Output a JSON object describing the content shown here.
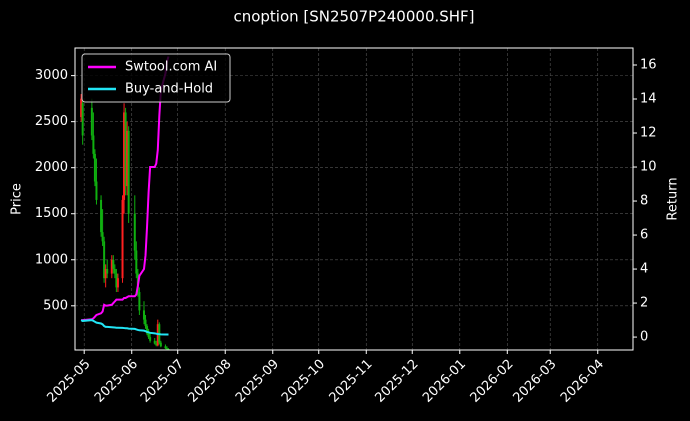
{
  "chart_data": {
    "type": "candlestick",
    "title": "cnoption [SN2507P240000.SHF]",
    "ylabel": "Price",
    "y2label": "Return",
    "x": [
      "2025-04-29",
      "2025-04-30",
      "2025-05-06",
      "2025-05-07",
      "2025-05-08",
      "2025-05-09",
      "2025-05-12",
      "2025-05-13",
      "2025-05-14",
      "2025-05-15",
      "2025-05-16",
      "2025-05-19",
      "2025-05-20",
      "2025-05-21",
      "2025-05-22",
      "2025-05-23",
      "2025-05-26",
      "2025-05-27",
      "2025-05-28",
      "2025-05-29",
      "2025-05-30",
      "2025-06-03",
      "2025-06-04",
      "2025-06-05",
      "2025-06-06",
      "2025-06-09",
      "2025-06-10",
      "2025-06-11",
      "2025-06-12",
      "2025-06-13",
      "2025-06-16",
      "2025-06-17",
      "2025-06-18",
      "2025-06-19",
      "2025-06-20",
      "2025-06-23",
      "2025-06-24",
      "2025-06-25"
    ],
    "open": [
      2550,
      2700,
      2650,
      2350,
      2150,
      1850,
      1650,
      1300,
      1200,
      800,
      900,
      850,
      1000,
      900,
      850,
      700,
      800,
      1650,
      2600,
      1800,
      2400,
      1500,
      1100,
      850,
      650,
      450,
      350,
      280,
      200,
      160,
      120,
      90,
      70,
      300,
      100,
      60,
      40,
      30
    ],
    "high": [
      2800,
      2750,
      2750,
      2600,
      2200,
      2100,
      1700,
      1550,
      1250,
      950,
      1000,
      1050,
      1050,
      950,
      900,
      850,
      1700,
      2700,
      2650,
      2500,
      2450,
      1700,
      1200,
      900,
      700,
      550,
      400,
      300,
      250,
      200,
      150,
      120,
      350,
      320,
      120,
      80,
      60,
      40
    ],
    "low": [
      2500,
      2250,
      2300,
      2100,
      1800,
      1600,
      1250,
      1150,
      750,
      700,
      800,
      800,
      850,
      800,
      650,
      650,
      750,
      1500,
      1700,
      1700,
      1400,
      1000,
      800,
      600,
      400,
      300,
      250,
      180,
      140,
      100,
      80,
      60,
      60,
      80,
      50,
      30,
      20,
      20
    ],
    "close": [
      2750,
      2350,
      2350,
      2150,
      1850,
      1650,
      1300,
      1200,
      800,
      900,
      850,
      1000,
      900,
      850,
      700,
      800,
      1650,
      2600,
      1800,
      2400,
      1500,
      1100,
      850,
      650,
      450,
      350,
      280,
      200,
      160,
      120,
      90,
      70,
      300,
      100,
      60,
      40,
      30,
      25
    ],
    "up_color": "#ff2020",
    "down_color": "#10b010",
    "series": [
      {
        "name": "Swtool.com AI",
        "color": "#ff00ff",
        "axis": "y2",
        "values": [
          1.0,
          1.0,
          1.05,
          1.1,
          1.2,
          1.3,
          1.4,
          1.5,
          1.9,
          1.85,
          1.85,
          1.9,
          2.0,
          2.1,
          2.2,
          2.2,
          2.2,
          2.3,
          2.3,
          2.35,
          2.4,
          2.4,
          2.5,
          3.0,
          3.6,
          4.0,
          4.8,
          6.5,
          8.5,
          10,
          10,
          10.2,
          11,
          13,
          14.5,
          15.5,
          16.2,
          16.5
        ]
      },
      {
        "name": "Buy-and-Hold",
        "color": "#22e5f5",
        "axis": "y2",
        "values": [
          1.0,
          0.95,
          1.0,
          0.95,
          0.9,
          0.85,
          0.8,
          0.75,
          0.65,
          0.6,
          0.6,
          0.58,
          0.57,
          0.56,
          0.55,
          0.55,
          0.54,
          0.53,
          0.52,
          0.52,
          0.5,
          0.48,
          0.45,
          0.42,
          0.4,
          0.38,
          0.35,
          0.3,
          0.28,
          0.25,
          0.22,
          0.2,
          0.18,
          0.17,
          0.16,
          0.15,
          0.15,
          0.15
        ]
      }
    ],
    "xlim": [
      "2025-04-25",
      "2026-04-24"
    ],
    "xticks": [
      {
        "value": "2025-05-01",
        "label": "2025-05"
      },
      {
        "value": "2025-06-01",
        "label": "2025-06"
      },
      {
        "value": "2025-07-01",
        "label": "2025-07"
      },
      {
        "value": "2025-08-01",
        "label": "2025-08"
      },
      {
        "value": "2025-09-01",
        "label": "2025-09"
      },
      {
        "value": "2025-10-01",
        "label": "2025-10"
      },
      {
        "value": "2025-11-01",
        "label": "2025-11"
      },
      {
        "value": "2025-12-01",
        "label": "2025-12"
      },
      {
        "value": "2026-01-01",
        "label": "2026-01"
      },
      {
        "value": "2026-02-01",
        "label": "2026-02"
      },
      {
        "value": "2026-03-01",
        "label": "2026-03"
      },
      {
        "value": "2026-04-01",
        "label": "2026-04"
      }
    ],
    "ylim": [
      20,
      3300
    ],
    "yticks": [
      500,
      1000,
      1500,
      2000,
      2500,
      3000
    ],
    "y2lim": [
      -0.76,
      17.0
    ],
    "y2ticks": [
      0,
      2,
      4,
      6,
      8,
      10,
      12,
      14,
      16
    ],
    "grid": true,
    "legend": "upper left"
  }
}
